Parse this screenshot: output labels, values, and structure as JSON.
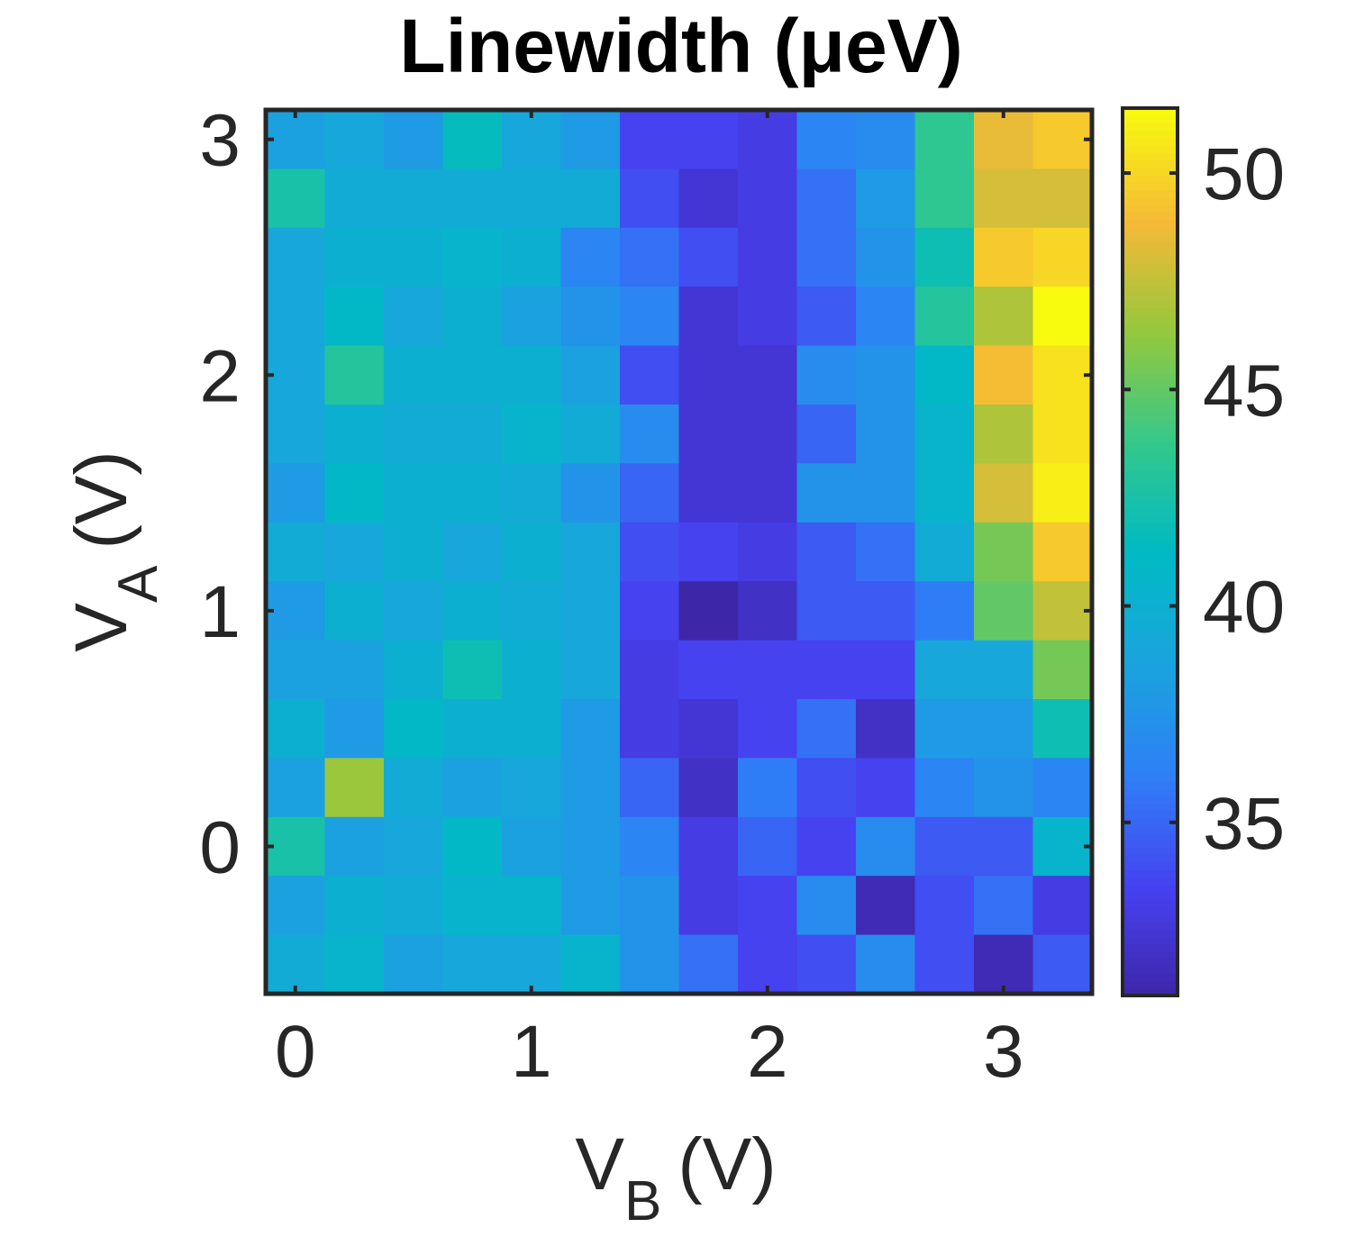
{
  "chart_data": {
    "type": "heatmap",
    "title": "Linewidth (μeV)",
    "xlabel": {
      "main": "V",
      "sub": "B",
      "unit": "(V)"
    },
    "ylabel": {
      "main": "V",
      "sub": "A",
      "unit": "(V)"
    },
    "x": [
      0,
      0.25,
      0.5,
      0.75,
      1,
      1.25,
      1.5,
      1.75,
      2,
      2.25,
      2.5,
      2.75,
      3,
      3.25
    ],
    "y": [
      3,
      2.75,
      2.5,
      2.25,
      2,
      1.75,
      1.5,
      1.25,
      1,
      0.75,
      0.5,
      0.25,
      0,
      -0.25,
      -0.5
    ],
    "xlim": [
      -0.125,
      3.375
    ],
    "ylim": [
      -0.625,
      3.125
    ],
    "xticks": [
      0,
      1,
      2,
      3
    ],
    "yticks": [
      0,
      1,
      2,
      3
    ],
    "values": [
      [
        38.5,
        39.0,
        38.0,
        41.5,
        39.0,
        38.0,
        33.5,
        33.5,
        33.0,
        36.5,
        37.0,
        43.5,
        48.5,
        49.5
      ],
      [
        42.5,
        39.5,
        39.5,
        39.5,
        39.5,
        39.5,
        34.0,
        32.5,
        33.0,
        35.5,
        38.0,
        43.5,
        48.0,
        48.0
      ],
      [
        39.0,
        40.0,
        40.0,
        40.5,
        40.0,
        36.5,
        35.5,
        34.0,
        33.0,
        35.5,
        37.5,
        42.0,
        49.5,
        50.0
      ],
      [
        39.0,
        41.0,
        39.0,
        40.0,
        38.5,
        37.5,
        36.5,
        32.5,
        33.0,
        34.5,
        36.5,
        43.0,
        47.0,
        51.5
      ],
      [
        39.0,
        43.0,
        40.0,
        40.0,
        40.0,
        38.5,
        34.0,
        32.5,
        32.5,
        37.0,
        37.5,
        41.0,
        49.0,
        50.5
      ],
      [
        39.0,
        40.0,
        39.5,
        39.5,
        40.5,
        39.5,
        37.0,
        32.5,
        32.5,
        35.0,
        37.5,
        40.5,
        47.0,
        50.5
      ],
      [
        38.0,
        41.0,
        40.0,
        40.0,
        39.5,
        37.5,
        35.0,
        32.5,
        32.5,
        37.5,
        37.5,
        40.5,
        48.0,
        51.0
      ],
      [
        39.5,
        39.0,
        40.0,
        39.0,
        40.0,
        39.0,
        34.0,
        33.5,
        33.0,
        34.5,
        35.5,
        39.5,
        45.5,
        49.5
      ],
      [
        38.0,
        40.0,
        39.0,
        40.0,
        39.5,
        39.0,
        33.5,
        31.0,
        32.0,
        34.5,
        34.5,
        36.0,
        45.0,
        47.5
      ],
      [
        38.5,
        38.5,
        40.0,
        42.0,
        40.0,
        39.0,
        33.0,
        33.5,
        33.5,
        33.5,
        33.5,
        39.0,
        39.0,
        45.5
      ],
      [
        40.0,
        38.0,
        41.0,
        40.0,
        40.0,
        38.0,
        33.0,
        32.5,
        33.5,
        35.5,
        32.0,
        38.0,
        38.0,
        42.0
      ],
      [
        38.5,
        46.5,
        39.5,
        38.5,
        39.0,
        38.0,
        35.0,
        32.0,
        36.0,
        34.0,
        33.5,
        36.5,
        37.5,
        36.5
      ],
      [
        42.5,
        38.5,
        39.0,
        41.0,
        38.5,
        38.0,
        36.5,
        33.0,
        35.0,
        33.5,
        37.0,
        34.5,
        34.5,
        40.5
      ],
      [
        38.5,
        40.0,
        39.5,
        40.5,
        40.5,
        38.0,
        37.5,
        33.0,
        33.5,
        37.0,
        31.5,
        34.0,
        35.5,
        33.0
      ],
      [
        39.5,
        40.5,
        38.5,
        39.0,
        39.0,
        40.5,
        37.5,
        35.5,
        33.5,
        34.0,
        37.0,
        34.0,
        31.5,
        34.5
      ]
    ],
    "colorbar": {
      "min": 31,
      "max": 51.5,
      "ticks": [
        35,
        40,
        45,
        50
      ],
      "colormap": "parula"
    },
    "grid": false
  }
}
